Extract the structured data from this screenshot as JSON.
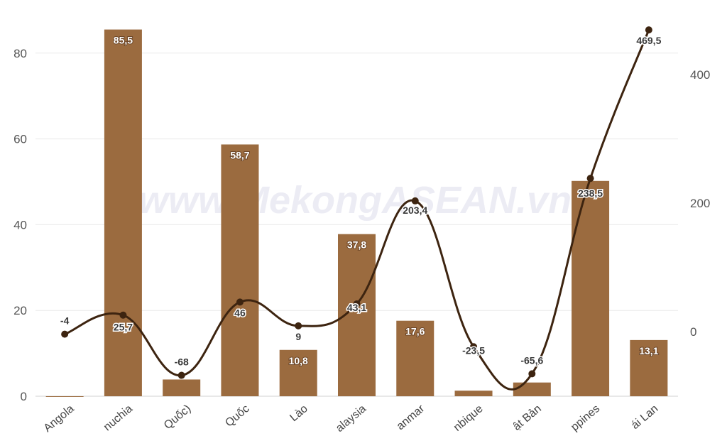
{
  "chart_data": {
    "type": "bar",
    "categories": [
      "Angola",
      "Campuchia",
      "Trung Quốc)",
      "Hàn Quốc",
      "Lào",
      "Malaysia",
      "Myanmar",
      "Mozambique",
      "Nhật Bản",
      "Philippines",
      "Thái Lan"
    ],
    "series": [
      {
        "type": "bar",
        "axis": "left",
        "values": [
          0,
          85.5,
          3.9,
          58.7,
          10.8,
          37.8,
          17.6,
          1.3,
          3.2,
          50.2,
          13.1
        ],
        "labels": [
          "",
          "85,5",
          "",
          "58,7",
          "10,8",
          "37,8",
          "17,6",
          "",
          "",
          "",
          "13,1"
        ],
        "color": "#9b6b3f"
      },
      {
        "type": "line",
        "axis": "right",
        "values": [
          -4,
          25.7,
          -68,
          46,
          9,
          43.1,
          203.4,
          -23.5,
          -65.6,
          238.5,
          469.5
        ],
        "labels": [
          "-4",
          "25,7",
          "-68",
          "46",
          "9",
          "43,1",
          "203,4",
          "-23,5",
          "-65,6",
          "238,5",
          "469,5"
        ],
        "color": "#3d2410"
      }
    ],
    "x_tick_labels": [
      "Angola",
      "nuchia",
      "Quốc)",
      "Quốc",
      "Lào",
      "alaysia",
      "anmar",
      "nbique",
      "ật Bản",
      "ppines",
      "ái Lan"
    ],
    "ylim_left": [
      0,
      90
    ],
    "yticks_left": [
      "0",
      "20",
      "40",
      "60",
      "80"
    ],
    "ylim_right": [
      -100,
      500
    ],
    "yticks_right": [
      "0",
      "200",
      "400"
    ],
    "grid": true,
    "watermark": "www.MekongASEAN.vn"
  }
}
